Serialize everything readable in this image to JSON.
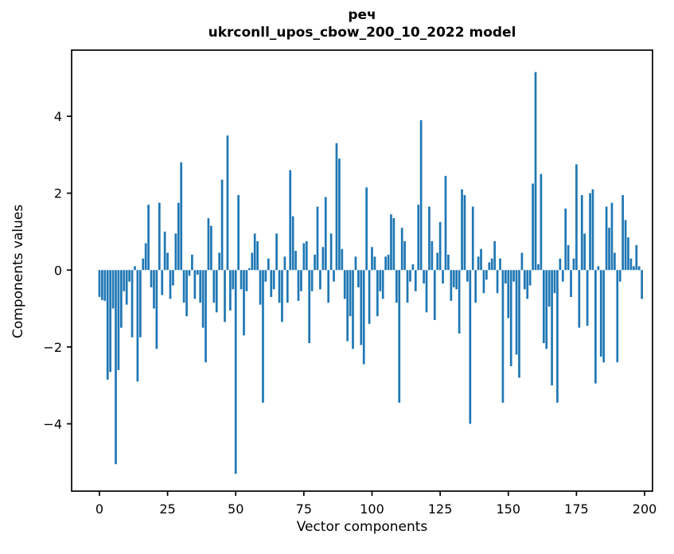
{
  "figure": {
    "title_line1": "реч",
    "title_line2": "ukrconll_upos_cbow_200_10_2022 model",
    "xlabel": "Vector components",
    "ylabel": "Components values"
  },
  "chart_data": {
    "type": "bar",
    "title": "реч",
    "subtitle": "ukrconll_upos_cbow_200_10_2022 model",
    "xlabel": "Vector components",
    "ylabel": "Components values",
    "bar_color": "#1f77b4",
    "axis_color": "#000000",
    "n_components": 200,
    "x_ticks": [
      0,
      25,
      50,
      75,
      100,
      125,
      150,
      175,
      200
    ],
    "x_tick_labels": [
      "0",
      "25",
      "50",
      "75",
      "100",
      "125",
      "150",
      "175",
      "200"
    ],
    "y_ticks": [
      -4,
      -2,
      0,
      2,
      4
    ],
    "y_tick_labels": [
      "−4",
      "−2",
      "0",
      "2",
      "4"
    ],
    "xlim": [
      -10.2,
      202.9
    ],
    "ylim": [
      -5.75,
      5.72
    ],
    "grid": false,
    "legend": null,
    "values": [
      -0.7,
      -0.78,
      -0.8,
      -2.85,
      -2.65,
      -1.0,
      -5.05,
      -2.6,
      -1.5,
      -0.55,
      -0.9,
      -0.3,
      -1.75,
      0.1,
      -2.9,
      -1.75,
      0.3,
      0.7,
      1.7,
      -0.45,
      -1.0,
      -2.05,
      1.75,
      -0.65,
      1.0,
      0.45,
      -0.75,
      -0.4,
      0.95,
      1.75,
      2.8,
      -0.85,
      -1.2,
      -0.15,
      0.4,
      -0.75,
      -0.12,
      -0.85,
      -1.5,
      -2.4,
      1.35,
      1.15,
      -0.85,
      -1.1,
      0.45,
      2.35,
      -1.35,
      3.5,
      -1.05,
      -0.5,
      -5.3,
      1.95,
      -0.5,
      -1.7,
      -0.55,
      0.05,
      0.45,
      0.95,
      0.75,
      -0.9,
      -3.45,
      -0.3,
      0.3,
      -0.7,
      -0.5,
      0.95,
      -0.85,
      -1.35,
      0.35,
      -0.85,
      2.6,
      1.4,
      0.5,
      -0.8,
      -0.55,
      0.7,
      0.75,
      -1.9,
      -0.55,
      0.4,
      1.65,
      -0.5,
      0.6,
      1.9,
      -0.85,
      0.95,
      -0.3,
      3.3,
      2.9,
      0.55,
      -0.75,
      -1.85,
      -1.2,
      -2.05,
      0.35,
      -0.45,
      -1.95,
      -2.45,
      2.15,
      -1.4,
      0.6,
      0.35,
      -1.2,
      -0.55,
      -0.75,
      0.35,
      0.4,
      1.45,
      1.35,
      -0.85,
      -3.45,
      1.1,
      0.75,
      -0.85,
      -0.3,
      0.15,
      -0.55,
      1.7,
      3.9,
      -0.35,
      -1.1,
      1.65,
      0.75,
      -1.3,
      0.45,
      1.25,
      -0.35,
      2.45,
      0.4,
      -0.8,
      -0.45,
      -0.5,
      -1.65,
      2.1,
      1.95,
      -0.3,
      -4.0,
      1.65,
      -0.85,
      0.35,
      0.55,
      -0.6,
      -0.25,
      0.2,
      0.3,
      0.75,
      -0.6,
      0.3,
      -3.45,
      -0.35,
      -1.25,
      -2.5,
      -0.3,
      -2.2,
      -2.8,
      0.45,
      -0.5,
      -0.75,
      -0.4,
      2.25,
      5.15,
      0.15,
      2.5,
      -1.9,
      -2.05,
      -0.95,
      -3.0,
      -0.6,
      -3.45,
      0.3,
      -0.3,
      1.6,
      0.65,
      -0.7,
      0.3,
      2.75,
      -1.5,
      1.95,
      0.95,
      -1.45,
      2.0,
      2.1,
      -2.95,
      0.1,
      -2.25,
      -2.4,
      1.65,
      1.1,
      1.75,
      0.45,
      -2.4,
      -0.3,
      1.95,
      1.3,
      0.85,
      0.3,
      0.1,
      0.65,
      0.1,
      -0.75
    ]
  }
}
